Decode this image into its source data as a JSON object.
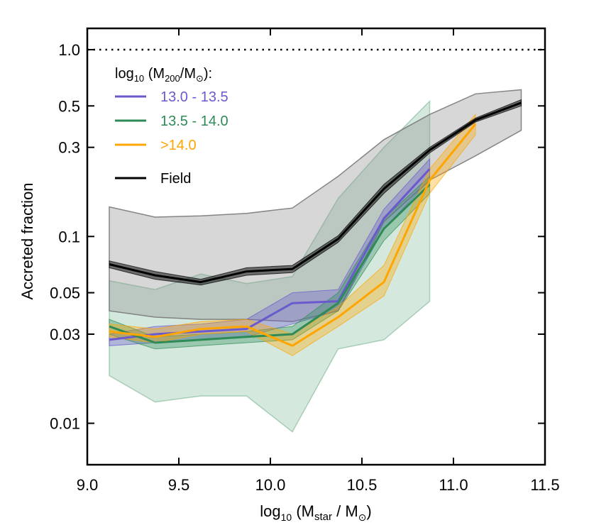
{
  "chart_data": {
    "type": "line",
    "xlabel": {
      "base": "log",
      "sub": "10",
      "rest": " (M",
      "sub2": "star",
      "rest2": " / M",
      "sym": "⊙",
      "end": ")"
    },
    "ylabel": "Accreted fraction",
    "xlim": [
      9.0,
      11.5
    ],
    "ylim": [
      0.006,
      1.3
    ],
    "yscale": "log",
    "x_ticks": [
      9.0,
      9.5,
      10.0,
      10.5,
      11.0,
      11.5
    ],
    "x_tick_labels": [
      "9.0",
      "9.5",
      "10.0",
      "10.5",
      "11.0",
      "11.5"
    ],
    "y_ticks": [
      0.01,
      0.03,
      0.05,
      0.1,
      0.3,
      0.5,
      1.0
    ],
    "y_tick_labels": [
      "0.01",
      "0.03",
      "0.05",
      "0.1",
      "0.3",
      "0.5",
      "1.0"
    ],
    "reference_line": {
      "y": 1.0,
      "style": "dotted",
      "color": "#000000"
    },
    "legend": {
      "title": {
        "base": "log",
        "sub": "10",
        "rest": " (M",
        "sub2": "200",
        "rest2": "/M",
        "sym": "⊙",
        "end": "):"
      },
      "placement": "top-left"
    },
    "series": [
      {
        "name": "13.0 - 13.5",
        "color": "#6a5acd",
        "x": [
          9.12,
          9.37,
          9.62,
          9.87,
          10.12,
          10.37,
          10.62,
          10.87
        ],
        "y": [
          0.028,
          0.03,
          0.031,
          0.032,
          0.044,
          0.045,
          0.125,
          0.23
        ],
        "lower": [
          0.026,
          0.027,
          0.028,
          0.029,
          0.034,
          0.04,
          0.11,
          0.2
        ],
        "upper": [
          0.03,
          0.033,
          0.034,
          0.036,
          0.05,
          0.052,
          0.14,
          0.26
        ]
      },
      {
        "name": "13.5 - 14.0",
        "color": "#2e8b57",
        "x": [
          9.12,
          9.37,
          9.62,
          9.87,
          10.12,
          10.37,
          10.62,
          10.87
        ],
        "y": [
          0.033,
          0.027,
          0.028,
          0.029,
          0.03,
          0.044,
          0.11,
          0.19
        ],
        "lower": [
          0.03,
          0.025,
          0.026,
          0.027,
          0.028,
          0.04,
          0.095,
          0.17
        ],
        "upper": [
          0.036,
          0.029,
          0.03,
          0.031,
          0.033,
          0.05,
          0.125,
          0.21
        ],
        "band_lower": [
          0.018,
          0.013,
          0.014,
          0.014,
          0.009,
          0.025,
          0.028,
          0.045
        ],
        "band_upper": [
          0.058,
          0.052,
          0.063,
          0.056,
          0.061,
          0.16,
          0.3,
          0.53
        ]
      },
      {
        "name": ">14.0",
        "color": "#ffa500",
        "x": [
          9.12,
          9.37,
          9.62,
          9.87,
          10.12,
          10.37,
          10.62,
          10.87,
          11.12
        ],
        "y": [
          0.031,
          0.029,
          0.032,
          0.033,
          0.026,
          0.037,
          0.057,
          0.2,
          0.4
        ],
        "lower": [
          0.029,
          0.027,
          0.03,
          0.031,
          0.023,
          0.033,
          0.048,
          0.17,
          0.35
        ],
        "upper": [
          0.034,
          0.032,
          0.035,
          0.036,
          0.03,
          0.042,
          0.07,
          0.23,
          0.45
        ]
      },
      {
        "name": "Field",
        "color": "#000000",
        "x": [
          9.12,
          9.37,
          9.62,
          9.87,
          10.12,
          10.37,
          10.62,
          10.87,
          11.12,
          11.37
        ],
        "y": [
          0.071,
          0.062,
          0.057,
          0.065,
          0.067,
          0.097,
          0.18,
          0.29,
          0.42,
          0.52
        ],
        "lower": [
          0.068,
          0.059,
          0.055,
          0.062,
          0.064,
          0.093,
          0.17,
          0.28,
          0.41,
          0.5
        ],
        "upper": [
          0.074,
          0.065,
          0.059,
          0.068,
          0.07,
          0.101,
          0.19,
          0.3,
          0.43,
          0.54
        ],
        "band_lower": [
          0.04,
          0.037,
          0.036,
          0.036,
          0.035,
          0.04,
          0.12,
          0.2,
          0.27,
          0.37
        ],
        "band_upper": [
          0.144,
          0.127,
          0.129,
          0.133,
          0.142,
          0.21,
          0.33,
          0.45,
          0.58,
          0.61
        ]
      }
    ]
  }
}
